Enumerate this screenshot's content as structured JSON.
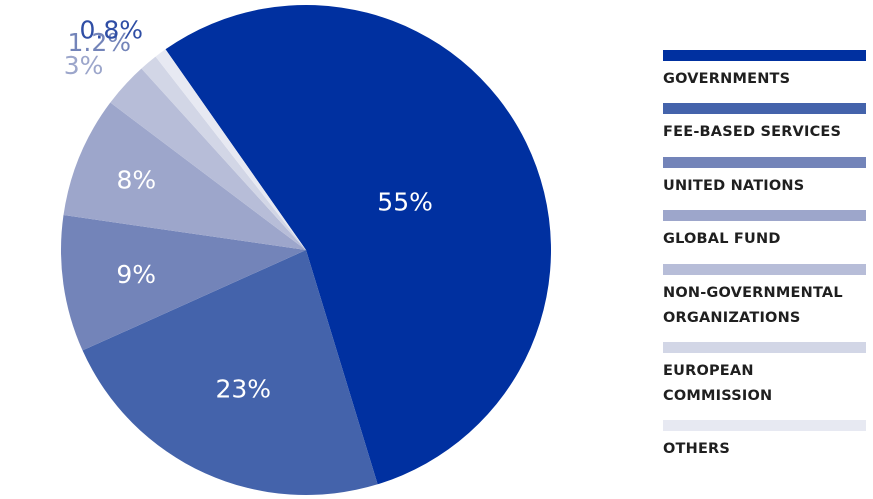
{
  "chart_data": {
    "type": "pie",
    "title": "",
    "slices": [
      {
        "label": "GOVERNMENTS",
        "value": 55,
        "display": "55%",
        "color": "#0030a0",
        "label_color": "#ffffff"
      },
      {
        "label": "FEE-BASED SERVICES",
        "value": 23,
        "display": "23%",
        "color": "#4463ab",
        "label_color": "#ffffff"
      },
      {
        "label": "UNITED NATIONS",
        "value": 9,
        "display": "9%",
        "color": "#7384b9",
        "label_color": "#ffffff"
      },
      {
        "label": "GLOBAL FUND",
        "value": 8,
        "display": "8%",
        "color": "#9da6cb",
        "label_color": "#ffffff"
      },
      {
        "label": "NON-GOVERNMENTAL ORGANIZATIONS",
        "value": 3,
        "display": "3%",
        "color": "#b7bdd8",
        "label_color": "#9ca6cb"
      },
      {
        "label": "EUROPEAN COMMISSION",
        "value": 1.2,
        "display": "1.2%",
        "color": "#d2d6e6",
        "label_color": "#7384b9"
      },
      {
        "label": "OTHERS",
        "value": 0.8,
        "display": "0.8%",
        "color": "#e7e9f2",
        "label_color": "#2f4ea5"
      }
    ],
    "legend_position": "right"
  }
}
